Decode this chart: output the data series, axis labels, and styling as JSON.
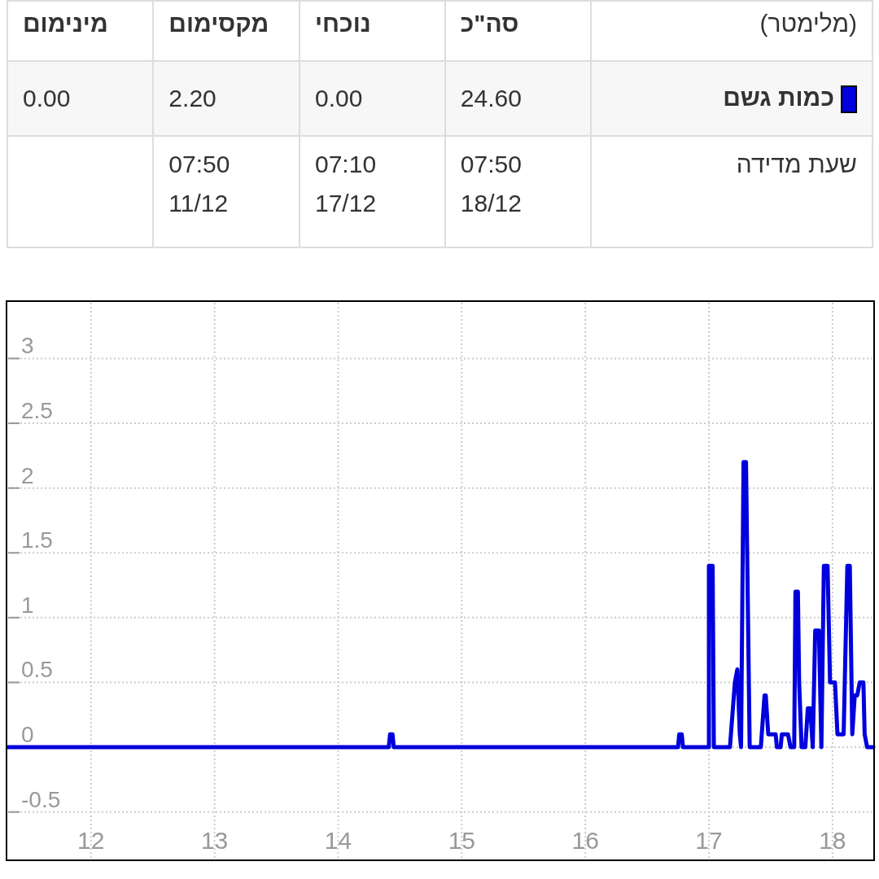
{
  "chart_data": {
    "type": "line",
    "annotations": [
      "(מלימטר)",
      "סה\"כ",
      "נוכחי",
      "מקסימום",
      "מינימום",
      "24.60",
      "0.00",
      "2.20",
      "0.00",
      "שעת מדידה",
      "07:50 18/12",
      "07:10 17/12",
      "07:50 11/12"
    ],
    "xlim": [
      11.33,
      18.33
    ],
    "ylim": [
      -0.86,
      3.43
    ],
    "xticks": [
      12,
      13,
      14,
      15,
      16,
      17,
      18
    ],
    "yticks": [
      -0.5,
      0,
      0.5,
      1,
      1.5,
      2,
      2.5,
      3
    ],
    "grid": true,
    "series": [
      {
        "name": "כמות גשם",
        "color": "#0000dd",
        "x": [
          11.33,
          14.41,
          14.42,
          14.44,
          14.45,
          16.75,
          16.76,
          16.78,
          16.79,
          17.0,
          17.0,
          17.03,
          17.04,
          17.17,
          17.21,
          17.23,
          17.25,
          17.26,
          17.28,
          17.3,
          17.33,
          17.42,
          17.45,
          17.46,
          17.48,
          17.54,
          17.55,
          17.58,
          17.59,
          17.62,
          17.64,
          17.66,
          17.69,
          17.7,
          17.72,
          17.73,
          17.75,
          17.78,
          17.8,
          17.82,
          17.84,
          17.86,
          17.89,
          17.91,
          17.93,
          17.96,
          17.98,
          18.02,
          18.04,
          18.06,
          18.09,
          18.12,
          18.14,
          18.16,
          18.18,
          18.2,
          18.22,
          18.25,
          18.26,
          18.28,
          18.33
        ],
        "values": [
          0,
          0,
          0.1,
          0.1,
          0,
          0,
          0.1,
          0.1,
          0,
          0,
          1.4,
          1.4,
          0,
          0,
          0.5,
          0.6,
          0.1,
          0,
          2.2,
          2.2,
          0,
          0,
          0.4,
          0.4,
          0.1,
          0.1,
          0,
          0,
          0.1,
          0.1,
          0.1,
          0,
          0,
          1.2,
          1.2,
          0.5,
          0,
          0,
          0.3,
          0.3,
          0,
          0.9,
          0.9,
          0,
          1.4,
          1.4,
          0.5,
          0.5,
          0.1,
          0.1,
          0.1,
          1.4,
          1.4,
          0.1,
          0.4,
          0.4,
          0.5,
          0.5,
          0.1,
          0,
          0
        ]
      }
    ]
  }
}
